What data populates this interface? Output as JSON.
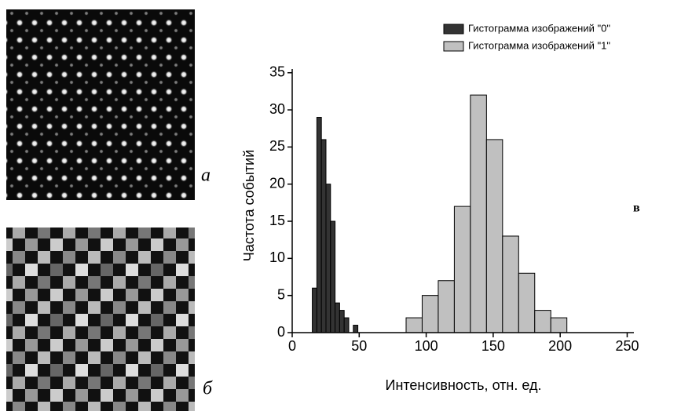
{
  "panel_labels": [
    "а",
    "б",
    "в"
  ],
  "chart_data": {
    "type": "histogram",
    "xlabel": "Интенсивность, отн. ед.",
    "ylabel": "Частота событий",
    "xlim": [
      0,
      255
    ],
    "ylim": [
      0,
      35.5
    ],
    "xticks": [
      0,
      50,
      100,
      150,
      200,
      250
    ],
    "yticks": [
      0,
      5,
      10,
      15,
      20,
      25,
      30,
      35
    ],
    "legend": "top-right",
    "series": [
      {
        "name": "Гистограмма изображений \"0\"",
        "color": "#333333",
        "bins": [
          15,
          18.4,
          21.8,
          25.2,
          28.6,
          32,
          35.4,
          38.8,
          42.2,
          45.6,
          49
        ],
        "values": [
          6,
          29,
          26,
          20,
          15,
          4,
          3,
          2,
          0,
          1
        ]
      },
      {
        "name": "Гистограмма изображений \"1\"",
        "color": "#c0c0c0",
        "bins": [
          85,
          97,
          109,
          121,
          133,
          145,
          157,
          169,
          181,
          193,
          205
        ],
        "values": [
          2,
          5,
          7,
          17,
          32,
          26,
          13,
          8,
          3,
          2
        ]
      }
    ]
  }
}
